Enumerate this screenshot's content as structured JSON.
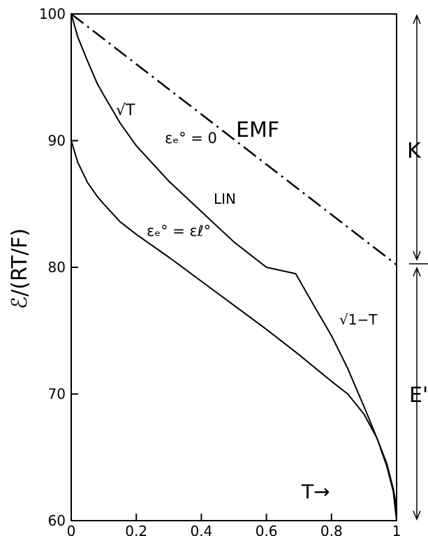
{
  "chart_data": {
    "type": "line",
    "title": "",
    "xlabel": "T→",
    "ylabel": "ℰ/(RT/F)",
    "xlim": [
      0,
      1
    ],
    "ylim": [
      60,
      100
    ],
    "x_ticks": [
      "0",
      "0.2",
      "0.4",
      "0.6",
      "0.8",
      "1"
    ],
    "y_ticks": [
      "60",
      "70",
      "80",
      "90",
      "100"
    ],
    "grid": false,
    "series": [
      {
        "style": "dash-dot",
        "x": [
          0,
          1
        ],
        "y": [
          100,
          80.2
        ]
      },
      {
        "style": "solid",
        "x": [
          0,
          0.02,
          0.05,
          0.08,
          0.1,
          0.15,
          0.2,
          0.3,
          0.4,
          0.5,
          0.6,
          0.69,
          0.75,
          0.8,
          0.85,
          0.9,
          0.94,
          0.97,
          0.99,
          1.0
        ],
        "y": [
          100,
          98.2,
          96.3,
          94.5,
          93.6,
          91.4,
          89.6,
          86.8,
          84.4,
          82.0,
          80.0,
          79.5,
          76.8,
          74.6,
          72.0,
          69.0,
          66.5,
          64.5,
          62.5,
          61.0
        ]
      },
      {
        "style": "solid",
        "x": [
          0,
          0.02,
          0.05,
          0.08,
          0.1,
          0.15,
          0.2,
          0.3,
          0.4,
          0.5,
          0.6,
          0.7,
          0.8,
          0.85,
          0.9,
          0.94,
          0.97,
          0.99,
          1.0
        ],
        "y": [
          90,
          88.3,
          86.7,
          85.6,
          85.0,
          83.6,
          82.6,
          80.8,
          78.9,
          77.0,
          75.1,
          73.1,
          71.0,
          70.0,
          68.4,
          66.5,
          64.3,
          62.3,
          60.0
        ]
      }
    ],
    "annotations": {
      "emf": "EMF",
      "sqrt_t": "√T",
      "eps_zero": "εₑ° = 0",
      "lin": "LIN",
      "eps_equal": "εₑ° = εℓ°",
      "sqrt_1_minus_t": "√1−T",
      "k": "K",
      "e_prime": "E'"
    }
  }
}
